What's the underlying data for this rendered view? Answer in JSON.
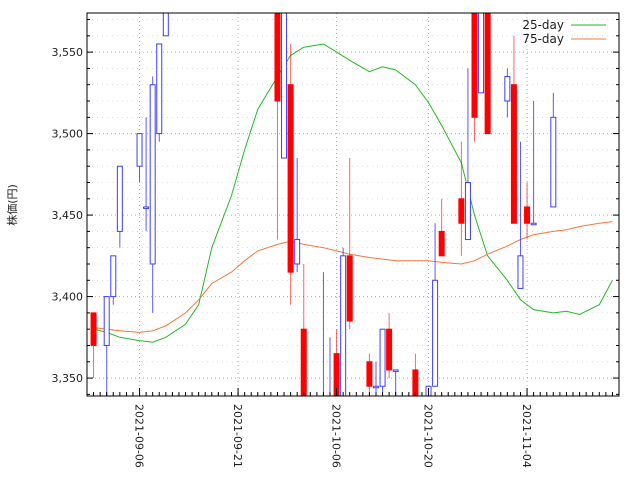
{
  "chart_data": {
    "type": "candlestick",
    "ylabel": "株価(円)",
    "ylim": [
      3339,
      3574
    ],
    "grid": true,
    "yticks": [
      3350,
      3400,
      3450,
      3500,
      3550
    ],
    "ytick_labels": [
      "3,350",
      "3,400",
      "3,450",
      "3,500",
      "3,550"
    ],
    "xlim": [
      "2021-08-29",
      "2021-11-18"
    ],
    "xticks": [
      "2021-09-06",
      "2021-09-21",
      "2021-10-06",
      "2021-10-20",
      "2021-11-04"
    ],
    "legend_position": "top-right",
    "colors": {
      "up": "#3f3ff5",
      "down": "#ff0000",
      "ma25": "#22bb22",
      "ma75": "#f07840",
      "grid": "#b0b0b0"
    },
    "candles": [
      {
        "date": "2021-08-30",
        "open": 3390,
        "high": 3390,
        "low": 3350,
        "close": 3370
      },
      {
        "date": "2021-09-01",
        "open": 3370,
        "high": 3400,
        "low": 3339,
        "close": 3400
      },
      {
        "date": "2021-09-02",
        "open": 3400,
        "high": 3425,
        "low": 3395,
        "close": 3425
      },
      {
        "date": "2021-09-03",
        "open": 3440,
        "high": 3480,
        "low": 3430,
        "close": 3480
      },
      {
        "date": "2021-09-06",
        "open": 3480,
        "high": 3500,
        "low": 3470,
        "close": 3500
      },
      {
        "date": "2021-09-07",
        "open": 3455,
        "high": 3510,
        "low": 3440,
        "close": 3455
      },
      {
        "date": "2021-09-08",
        "open": 3420,
        "high": 3535,
        "low": 3390,
        "close": 3530
      },
      {
        "date": "2021-09-09",
        "open": 3500,
        "high": 3555,
        "low": 3495,
        "close": 3555
      },
      {
        "date": "2021-09-10",
        "open": 3560,
        "high": 3574,
        "low": 3560,
        "close": 3574
      },
      {
        "date": "2021-09-27",
        "open": 3574,
        "high": 3574,
        "low": 3435,
        "close": 3520
      },
      {
        "date": "2021-09-28",
        "open": 3485,
        "high": 3574,
        "low": 3485,
        "close": 3574
      },
      {
        "date": "2021-09-29",
        "open": 3530,
        "high": 3555,
        "low": 3395,
        "close": 3415
      },
      {
        "date": "2021-09-30",
        "open": 3420,
        "high": 3485,
        "low": 3415,
        "close": 3435
      },
      {
        "date": "2021-10-01",
        "open": 3380,
        "high": 3420,
        "low": 3339,
        "close": 3339
      },
      {
        "date": "2021-10-04",
        "open": 3339,
        "high": 3415,
        "low": 3339,
        "close": 3339
      },
      {
        "date": "2021-10-05",
        "open": 3339,
        "high": 3375,
        "low": 3339,
        "close": 3339
      },
      {
        "date": "2021-10-06",
        "open": 3365,
        "high": 3380,
        "low": 3339,
        "close": 3339
      },
      {
        "date": "2021-10-07",
        "open": 3339,
        "high": 3430,
        "low": 3339,
        "close": 3425
      },
      {
        "date": "2021-10-08",
        "open": 3425,
        "high": 3485,
        "low": 3380,
        "close": 3385
      },
      {
        "date": "2021-10-11",
        "open": 3360,
        "high": 3365,
        "low": 3339,
        "close": 3345
      },
      {
        "date": "2021-10-12",
        "open": 3345,
        "high": 3360,
        "low": 3339,
        "close": 3345
      },
      {
        "date": "2021-10-13",
        "open": 3345,
        "high": 3380,
        "low": 3339,
        "close": 3380
      },
      {
        "date": "2021-10-14",
        "open": 3380,
        "high": 3390,
        "low": 3350,
        "close": 3355
      },
      {
        "date": "2021-10-15",
        "open": 3355,
        "high": 3355,
        "low": 3339,
        "close": 3355
      },
      {
        "date": "2021-10-18",
        "open": 3355,
        "high": 3365,
        "low": 3339,
        "close": 3339
      },
      {
        "date": "2021-10-20",
        "open": 3339,
        "high": 3345,
        "low": 3339,
        "close": 3345
      },
      {
        "date": "2021-10-21",
        "open": 3345,
        "high": 3445,
        "low": 3345,
        "close": 3410
      },
      {
        "date": "2021-10-22",
        "open": 3440,
        "high": 3460,
        "low": 3425,
        "close": 3425
      },
      {
        "date": "2021-10-25",
        "open": 3460,
        "high": 3495,
        "low": 3425,
        "close": 3445
      },
      {
        "date": "2021-10-26",
        "open": 3435,
        "high": 3540,
        "low": 3435,
        "close": 3470
      },
      {
        "date": "2021-10-27",
        "open": 3574,
        "high": 3574,
        "low": 3495,
        "close": 3510
      },
      {
        "date": "2021-10-28",
        "open": 3525,
        "high": 3574,
        "low": 3525,
        "close": 3574
      },
      {
        "date": "2021-10-29",
        "open": 3574,
        "high": 3574,
        "low": 3500,
        "close": 3500
      },
      {
        "date": "2021-11-01",
        "open": 3520,
        "high": 3540,
        "low": 3510,
        "close": 3535
      },
      {
        "date": "2021-11-02",
        "open": 3530,
        "high": 3560,
        "low": 3445,
        "close": 3445
      },
      {
        "date": "2021-11-03",
        "open": 3405,
        "high": 3495,
        "low": 3405,
        "close": 3425
      },
      {
        "date": "2021-11-04",
        "open": 3455,
        "high": 3470,
        "low": 3435,
        "close": 3445
      },
      {
        "date": "2021-11-05",
        "open": 3445,
        "high": 3520,
        "low": 3445,
        "close": 3445
      },
      {
        "date": "2021-11-08",
        "open": 3455,
        "high": 3525,
        "low": 3455,
        "close": 3510
      }
    ],
    "series": [
      {
        "name": "25-day",
        "x": [
          "2021-08-30",
          "2021-09-01",
          "2021-09-03",
          "2021-09-06",
          "2021-09-08",
          "2021-09-10",
          "2021-09-13",
          "2021-09-15",
          "2021-09-17",
          "2021-09-20",
          "2021-09-22",
          "2021-09-24",
          "2021-09-27",
          "2021-09-29",
          "2021-10-01",
          "2021-10-04",
          "2021-10-06",
          "2021-10-08",
          "2021-10-11",
          "2021-10-13",
          "2021-10-15",
          "2021-10-18",
          "2021-10-20",
          "2021-10-22",
          "2021-10-25",
          "2021-10-27",
          "2021-10-29",
          "2021-11-01",
          "2021-11-03",
          "2021-11-05",
          "2021-11-08",
          "2021-11-10",
          "2021-11-12",
          "2021-11-15",
          "2021-11-17"
        ],
        "y": [
          3380,
          3378,
          3375,
          3373,
          3372,
          3375,
          3383,
          3395,
          3430,
          3462,
          3490,
          3515,
          3535,
          3548,
          3553,
          3555,
          3550,
          3545,
          3538,
          3541,
          3539,
          3530,
          3519,
          3505,
          3482,
          3450,
          3425,
          3410,
          3398,
          3392,
          3390,
          3391,
          3389,
          3395,
          3410
        ]
      },
      {
        "name": "75-day",
        "x": [
          "2021-08-30",
          "2021-09-01",
          "2021-09-03",
          "2021-09-06",
          "2021-09-08",
          "2021-09-10",
          "2021-09-13",
          "2021-09-15",
          "2021-09-17",
          "2021-09-20",
          "2021-09-22",
          "2021-09-24",
          "2021-09-27",
          "2021-09-29",
          "2021-10-01",
          "2021-10-04",
          "2021-10-06",
          "2021-10-08",
          "2021-10-11",
          "2021-10-13",
          "2021-10-15",
          "2021-10-18",
          "2021-10-20",
          "2021-10-22",
          "2021-10-25",
          "2021-10-27",
          "2021-10-29",
          "2021-11-01",
          "2021-11-03",
          "2021-11-05",
          "2021-11-08",
          "2021-11-10",
          "2021-11-12",
          "2021-11-15",
          "2021-11-17"
        ],
        "y": [
          3381,
          3380,
          3379,
          3378,
          3379,
          3382,
          3390,
          3398,
          3408,
          3415,
          3422,
          3428,
          3432,
          3434,
          3432,
          3430,
          3428,
          3426,
          3424,
          3423,
          3422,
          3422,
          3422,
          3421,
          3420,
          3422,
          3426,
          3431,
          3435,
          3438,
          3440,
          3441,
          3443,
          3445,
          3446
        ]
      }
    ]
  }
}
